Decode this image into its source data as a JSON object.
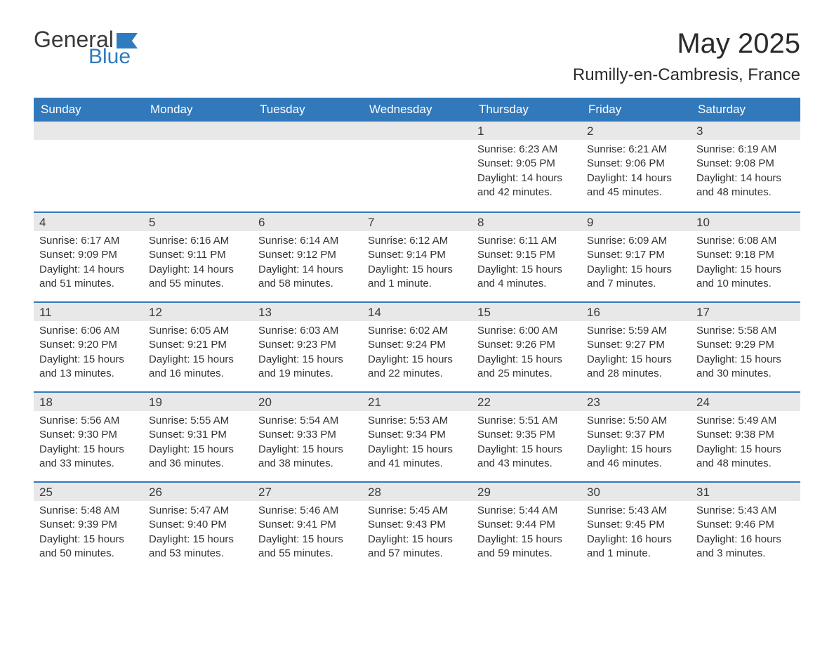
{
  "logo": {
    "general": "General",
    "blue": "Blue",
    "flag_color": "#2f7bbf"
  },
  "title": "May 2025",
  "location": "Rumilly-en-Cambresis, France",
  "colors": {
    "header_bg": "#3279bc",
    "header_text": "#ffffff",
    "daynum_bg": "#e8e8e8",
    "week_border": "#3279bc",
    "body_text": "#333333",
    "page_bg": "#ffffff"
  },
  "day_names": [
    "Sunday",
    "Monday",
    "Tuesday",
    "Wednesday",
    "Thursday",
    "Friday",
    "Saturday"
  ],
  "weeks": [
    [
      {
        "blank": true
      },
      {
        "blank": true
      },
      {
        "blank": true
      },
      {
        "blank": true
      },
      {
        "day": "1",
        "sunrise": "Sunrise: 6:23 AM",
        "sunset": "Sunset: 9:05 PM",
        "daylight": "Daylight: 14 hours and 42 minutes."
      },
      {
        "day": "2",
        "sunrise": "Sunrise: 6:21 AM",
        "sunset": "Sunset: 9:06 PM",
        "daylight": "Daylight: 14 hours and 45 minutes."
      },
      {
        "day": "3",
        "sunrise": "Sunrise: 6:19 AM",
        "sunset": "Sunset: 9:08 PM",
        "daylight": "Daylight: 14 hours and 48 minutes."
      }
    ],
    [
      {
        "day": "4",
        "sunrise": "Sunrise: 6:17 AM",
        "sunset": "Sunset: 9:09 PM",
        "daylight": "Daylight: 14 hours and 51 minutes."
      },
      {
        "day": "5",
        "sunrise": "Sunrise: 6:16 AM",
        "sunset": "Sunset: 9:11 PM",
        "daylight": "Daylight: 14 hours and 55 minutes."
      },
      {
        "day": "6",
        "sunrise": "Sunrise: 6:14 AM",
        "sunset": "Sunset: 9:12 PM",
        "daylight": "Daylight: 14 hours and 58 minutes."
      },
      {
        "day": "7",
        "sunrise": "Sunrise: 6:12 AM",
        "sunset": "Sunset: 9:14 PM",
        "daylight": "Daylight: 15 hours and 1 minute."
      },
      {
        "day": "8",
        "sunrise": "Sunrise: 6:11 AM",
        "sunset": "Sunset: 9:15 PM",
        "daylight": "Daylight: 15 hours and 4 minutes."
      },
      {
        "day": "9",
        "sunrise": "Sunrise: 6:09 AM",
        "sunset": "Sunset: 9:17 PM",
        "daylight": "Daylight: 15 hours and 7 minutes."
      },
      {
        "day": "10",
        "sunrise": "Sunrise: 6:08 AM",
        "sunset": "Sunset: 9:18 PM",
        "daylight": "Daylight: 15 hours and 10 minutes."
      }
    ],
    [
      {
        "day": "11",
        "sunrise": "Sunrise: 6:06 AM",
        "sunset": "Sunset: 9:20 PM",
        "daylight": "Daylight: 15 hours and 13 minutes."
      },
      {
        "day": "12",
        "sunrise": "Sunrise: 6:05 AM",
        "sunset": "Sunset: 9:21 PM",
        "daylight": "Daylight: 15 hours and 16 minutes."
      },
      {
        "day": "13",
        "sunrise": "Sunrise: 6:03 AM",
        "sunset": "Sunset: 9:23 PM",
        "daylight": "Daylight: 15 hours and 19 minutes."
      },
      {
        "day": "14",
        "sunrise": "Sunrise: 6:02 AM",
        "sunset": "Sunset: 9:24 PM",
        "daylight": "Daylight: 15 hours and 22 minutes."
      },
      {
        "day": "15",
        "sunrise": "Sunrise: 6:00 AM",
        "sunset": "Sunset: 9:26 PM",
        "daylight": "Daylight: 15 hours and 25 minutes."
      },
      {
        "day": "16",
        "sunrise": "Sunrise: 5:59 AM",
        "sunset": "Sunset: 9:27 PM",
        "daylight": "Daylight: 15 hours and 28 minutes."
      },
      {
        "day": "17",
        "sunrise": "Sunrise: 5:58 AM",
        "sunset": "Sunset: 9:29 PM",
        "daylight": "Daylight: 15 hours and 30 minutes."
      }
    ],
    [
      {
        "day": "18",
        "sunrise": "Sunrise: 5:56 AM",
        "sunset": "Sunset: 9:30 PM",
        "daylight": "Daylight: 15 hours and 33 minutes."
      },
      {
        "day": "19",
        "sunrise": "Sunrise: 5:55 AM",
        "sunset": "Sunset: 9:31 PM",
        "daylight": "Daylight: 15 hours and 36 minutes."
      },
      {
        "day": "20",
        "sunrise": "Sunrise: 5:54 AM",
        "sunset": "Sunset: 9:33 PM",
        "daylight": "Daylight: 15 hours and 38 minutes."
      },
      {
        "day": "21",
        "sunrise": "Sunrise: 5:53 AM",
        "sunset": "Sunset: 9:34 PM",
        "daylight": "Daylight: 15 hours and 41 minutes."
      },
      {
        "day": "22",
        "sunrise": "Sunrise: 5:51 AM",
        "sunset": "Sunset: 9:35 PM",
        "daylight": "Daylight: 15 hours and 43 minutes."
      },
      {
        "day": "23",
        "sunrise": "Sunrise: 5:50 AM",
        "sunset": "Sunset: 9:37 PM",
        "daylight": "Daylight: 15 hours and 46 minutes."
      },
      {
        "day": "24",
        "sunrise": "Sunrise: 5:49 AM",
        "sunset": "Sunset: 9:38 PM",
        "daylight": "Daylight: 15 hours and 48 minutes."
      }
    ],
    [
      {
        "day": "25",
        "sunrise": "Sunrise: 5:48 AM",
        "sunset": "Sunset: 9:39 PM",
        "daylight": "Daylight: 15 hours and 50 minutes."
      },
      {
        "day": "26",
        "sunrise": "Sunrise: 5:47 AM",
        "sunset": "Sunset: 9:40 PM",
        "daylight": "Daylight: 15 hours and 53 minutes."
      },
      {
        "day": "27",
        "sunrise": "Sunrise: 5:46 AM",
        "sunset": "Sunset: 9:41 PM",
        "daylight": "Daylight: 15 hours and 55 minutes."
      },
      {
        "day": "28",
        "sunrise": "Sunrise: 5:45 AM",
        "sunset": "Sunset: 9:43 PM",
        "daylight": "Daylight: 15 hours and 57 minutes."
      },
      {
        "day": "29",
        "sunrise": "Sunrise: 5:44 AM",
        "sunset": "Sunset: 9:44 PM",
        "daylight": "Daylight: 15 hours and 59 minutes."
      },
      {
        "day": "30",
        "sunrise": "Sunrise: 5:43 AM",
        "sunset": "Sunset: 9:45 PM",
        "daylight": "Daylight: 16 hours and 1 minute."
      },
      {
        "day": "31",
        "sunrise": "Sunrise: 5:43 AM",
        "sunset": "Sunset: 9:46 PM",
        "daylight": "Daylight: 16 hours and 3 minutes."
      }
    ]
  ]
}
